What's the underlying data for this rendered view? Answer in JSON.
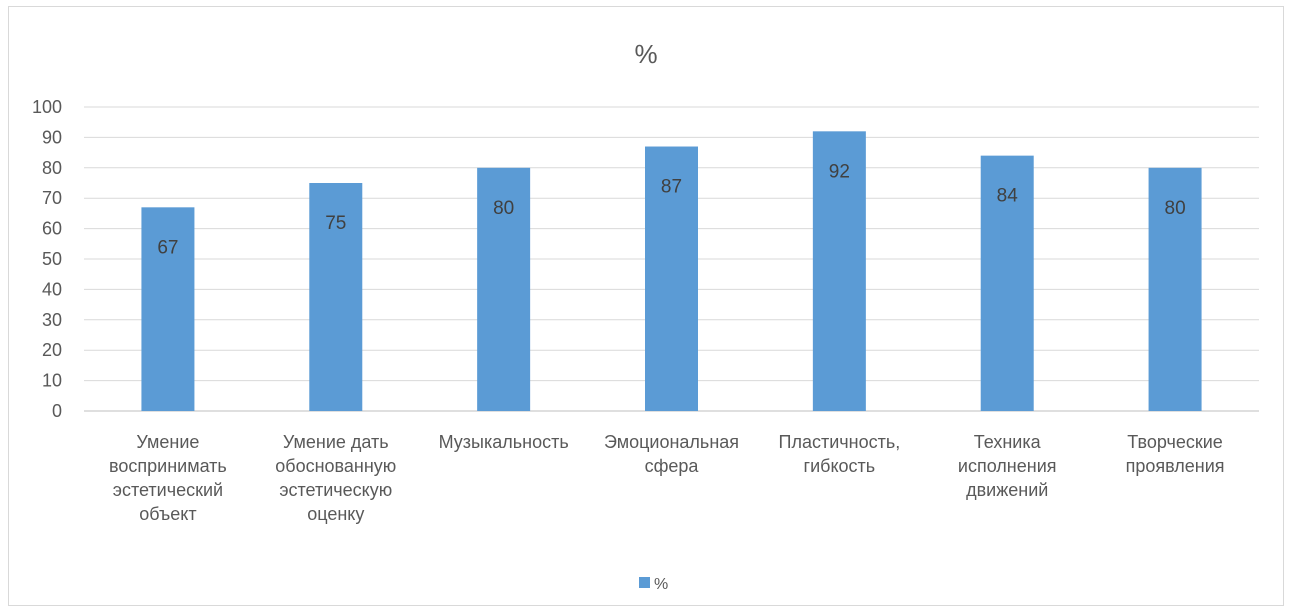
{
  "chart_data": {
    "type": "bar",
    "title": "%",
    "categories": [
      [
        "Умение",
        "воспринимать",
        "эстетический",
        "объект"
      ],
      [
        "Умение дать",
        "обоснованную",
        "эстетическую",
        "оценку"
      ],
      [
        "Музыкальность"
      ],
      [
        "Эмоциональная",
        "сфера"
      ],
      [
        "Пластичность,",
        "гибкость"
      ],
      [
        "Техника",
        "исполнения",
        "движений"
      ],
      [
        "Творческие",
        "проявления"
      ]
    ],
    "series": [
      {
        "name": "%",
        "values": [
          67,
          75,
          80,
          87,
          92,
          84,
          80
        ]
      }
    ],
    "ylim": [
      0,
      100
    ],
    "yticks": [
      0,
      10,
      20,
      30,
      40,
      50,
      60,
      70,
      80,
      90,
      100
    ],
    "grid": true,
    "legend_position": "bottom",
    "data_labels": true,
    "colors": {
      "bar": "#5b9bd5",
      "grid": "#d9d9d9",
      "text": "#595959"
    }
  }
}
